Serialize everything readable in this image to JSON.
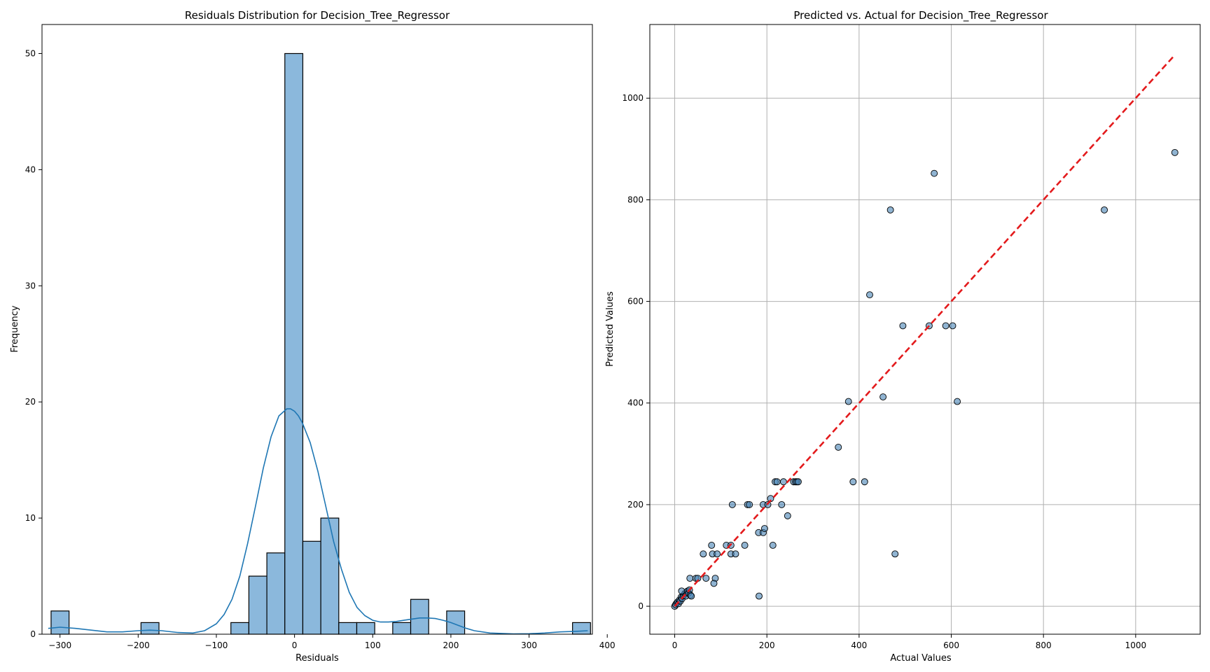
{
  "chart_data": [
    {
      "type": "bar",
      "title": "Residuals Distribution for Decision_Tree_Regressor",
      "xlabel": "Residuals",
      "ylabel": "Frequency",
      "xlim": [
        -323,
        381
      ],
      "ylim": [
        0,
        52.5
      ],
      "xticks": [
        -300,
        -200,
        -100,
        0,
        100,
        200,
        300,
        400
      ],
      "xtick_labels": [
        "−300",
        "−200",
        "−100",
        "0",
        "100",
        "200",
        "300",
        "400"
      ],
      "yticks": [
        0,
        10,
        20,
        30,
        40,
        50
      ],
      "ytick_labels": [
        "0",
        "10",
        "20",
        "30",
        "40",
        "50"
      ],
      "grid": false,
      "bar_color": "#8bb8dc",
      "edge_color": "#000000",
      "kde_color": "#1f77b4",
      "bins": [
        {
          "start": -311.4,
          "end": -288.4,
          "count": 2
        },
        {
          "start": -196.4,
          "end": -173.4,
          "count": 1
        },
        {
          "start": -81.4,
          "end": -58.4,
          "count": 1
        },
        {
          "start": -58.4,
          "end": -35.4,
          "count": 5
        },
        {
          "start": -35.4,
          "end": -12.4,
          "count": 7
        },
        {
          "start": -12.4,
          "end": 10.6,
          "count": 50
        },
        {
          "start": 10.6,
          "end": 33.6,
          "count": 8
        },
        {
          "start": 33.6,
          "end": 56.6,
          "count": 10
        },
        {
          "start": 56.6,
          "end": 79.6,
          "count": 1
        },
        {
          "start": 79.6,
          "end": 102.6,
          "count": 1
        },
        {
          "start": 125.6,
          "end": 148.6,
          "count": 1
        },
        {
          "start": 148.6,
          "end": 171.6,
          "count": 3
        },
        {
          "start": 194.6,
          "end": 217.6,
          "count": 2
        },
        {
          "start": 355.6,
          "end": 378.6,
          "count": 1
        }
      ],
      "kde": {
        "x": [
          -315,
          -300,
          -280,
          -260,
          -240,
          -220,
          -200,
          -185,
          -170,
          -150,
          -130,
          -115,
          -100,
          -90,
          -80,
          -70,
          -60,
          -50,
          -40,
          -30,
          -20,
          -10,
          -5,
          0,
          5,
          10,
          20,
          30,
          40,
          50,
          60,
          70,
          80,
          90,
          100,
          110,
          120,
          130,
          140,
          150,
          160,
          170,
          180,
          190,
          200,
          210,
          220,
          230,
          250,
          280,
          300,
          320,
          340,
          360,
          375
        ],
        "y": [
          0.5,
          0.6,
          0.5,
          0.35,
          0.2,
          0.2,
          0.3,
          0.35,
          0.3,
          0.15,
          0.1,
          0.3,
          0.9,
          1.7,
          3.0,
          5.0,
          7.8,
          11.0,
          14.3,
          17.0,
          18.8,
          19.4,
          19.4,
          19.2,
          18.8,
          18.2,
          16.5,
          14.0,
          11.0,
          8.0,
          5.6,
          3.6,
          2.3,
          1.6,
          1.2,
          1.05,
          1.05,
          1.1,
          1.2,
          1.3,
          1.4,
          1.4,
          1.35,
          1.2,
          1.0,
          0.75,
          0.5,
          0.3,
          0.1,
          0.03,
          0.04,
          0.1,
          0.2,
          0.25,
          0.3
        ]
      }
    },
    {
      "type": "scatter",
      "title": "Predicted vs. Actual for Decision_Tree_Regressor",
      "xlabel": "Actual Values",
      "ylabel": "Predicted Values",
      "xlim": [
        -54,
        1140
      ],
      "ylim": [
        -55,
        1145
      ],
      "xticks": [
        0,
        200,
        400,
        600,
        800,
        1000
      ],
      "xtick_labels": [
        "0",
        "200",
        "400",
        "600",
        "800",
        "1000"
      ],
      "yticks": [
        0,
        200,
        400,
        600,
        800,
        1000
      ],
      "ytick_labels": [
        "0",
        "200",
        "400",
        "600",
        "800",
        "1000"
      ],
      "grid": true,
      "point_color": "#4682b4",
      "line_color": "#e31a1c",
      "reference_line": {
        "from": [
          0,
          0
        ],
        "to": [
          1085,
          1085
        ]
      },
      "points": [
        [
          0,
          0
        ],
        [
          2,
          3
        ],
        [
          4,
          6
        ],
        [
          6,
          8
        ],
        [
          8,
          5
        ],
        [
          10,
          12
        ],
        [
          12,
          10
        ],
        [
          14,
          18
        ],
        [
          16,
          15
        ],
        [
          18,
          20
        ],
        [
          20,
          22
        ],
        [
          22,
          25
        ],
        [
          24,
          20
        ],
        [
          26,
          28
        ],
        [
          28,
          30
        ],
        [
          30,
          26
        ],
        [
          15,
          30
        ],
        [
          32,
          32
        ],
        [
          34,
          22
        ],
        [
          36,
          20
        ],
        [
          33,
          55
        ],
        [
          46,
          55
        ],
        [
          50,
          55
        ],
        [
          68,
          55
        ],
        [
          88,
          55
        ],
        [
          85,
          45
        ],
        [
          62,
          103
        ],
        [
          82,
          103
        ],
        [
          92,
          103
        ],
        [
          122,
          103
        ],
        [
          132,
          103
        ],
        [
          80,
          120
        ],
        [
          112,
          120
        ],
        [
          122,
          120
        ],
        [
          152,
          120
        ],
        [
          213,
          120
        ],
        [
          125,
          200
        ],
        [
          158,
          200
        ],
        [
          162,
          200
        ],
        [
          192,
          200
        ],
        [
          202,
          200
        ],
        [
          232,
          200
        ],
        [
          182,
          145
        ],
        [
          192,
          145
        ],
        [
          195,
          153
        ],
        [
          208,
          212
        ],
        [
          245,
          178
        ],
        [
          218,
          245
        ],
        [
          222,
          245
        ],
        [
          236,
          245
        ],
        [
          258,
          245
        ],
        [
          262,
          245
        ],
        [
          265,
          245
        ],
        [
          268,
          245
        ],
        [
          355,
          313
        ],
        [
          377,
          403
        ],
        [
          387,
          245
        ],
        [
          412,
          245
        ],
        [
          423,
          613
        ],
        [
          452,
          412
        ],
        [
          468,
          780
        ],
        [
          478,
          103
        ],
        [
          495,
          552
        ],
        [
          552,
          552
        ],
        [
          563,
          852
        ],
        [
          588,
          552
        ],
        [
          603,
          552
        ],
        [
          613,
          403
        ],
        [
          183,
          20
        ],
        [
          932,
          780
        ],
        [
          1085,
          893
        ]
      ]
    }
  ]
}
